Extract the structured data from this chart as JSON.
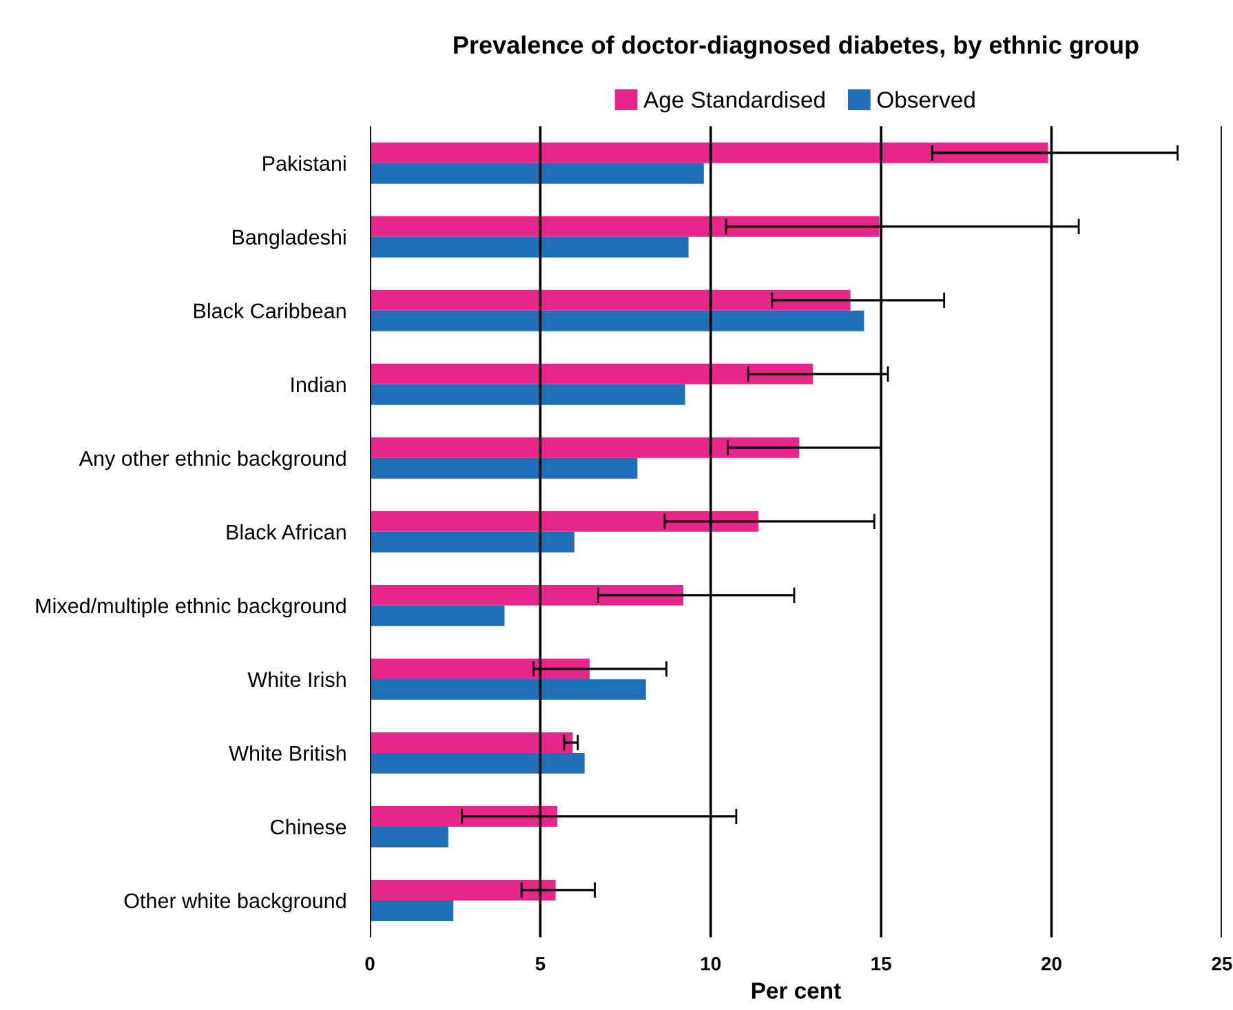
{
  "chart_data": {
    "type": "bar",
    "orientation": "horizontal",
    "title": "Prevalence of doctor-diagnosed diabetes, by ethnic group",
    "xlabel": "Per cent",
    "categories": [
      "Pakistani",
      "Bangladeshi",
      "Black Caribbean",
      "Indian",
      "Any other ethnic background",
      "Black African",
      "Mixed/multiple ethnic background",
      "White Irish",
      "White British",
      "Chinese",
      "Other white background"
    ],
    "series": [
      {
        "name": "Age Standardised",
        "color": "#e6268a",
        "values": [
          19.9,
          14.95,
          14.1,
          13.0,
          12.6,
          11.4,
          9.2,
          6.45,
          5.95,
          5.5,
          5.45
        ],
        "errors": [
          [
            16.5,
            23.7
          ],
          [
            10.45,
            20.8
          ],
          [
            11.8,
            16.85
          ],
          [
            11.1,
            15.2
          ],
          [
            10.5,
            15.0
          ],
          [
            8.65,
            14.8
          ],
          [
            6.7,
            12.45
          ],
          [
            4.8,
            8.7
          ],
          [
            5.7,
            6.1
          ],
          [
            2.7,
            10.75
          ],
          [
            4.45,
            6.6
          ]
        ]
      },
      {
        "name": "Observed",
        "color": "#1f70b8",
        "values": [
          9.8,
          9.35,
          14.5,
          9.25,
          7.85,
          6.0,
          3.95,
          8.1,
          6.3,
          2.3,
          2.45
        ]
      }
    ],
    "xlim": [
      0,
      25
    ],
    "xticks": [
      0,
      5,
      10,
      15,
      20,
      25
    ],
    "grid": "x",
    "legend": "top"
  }
}
